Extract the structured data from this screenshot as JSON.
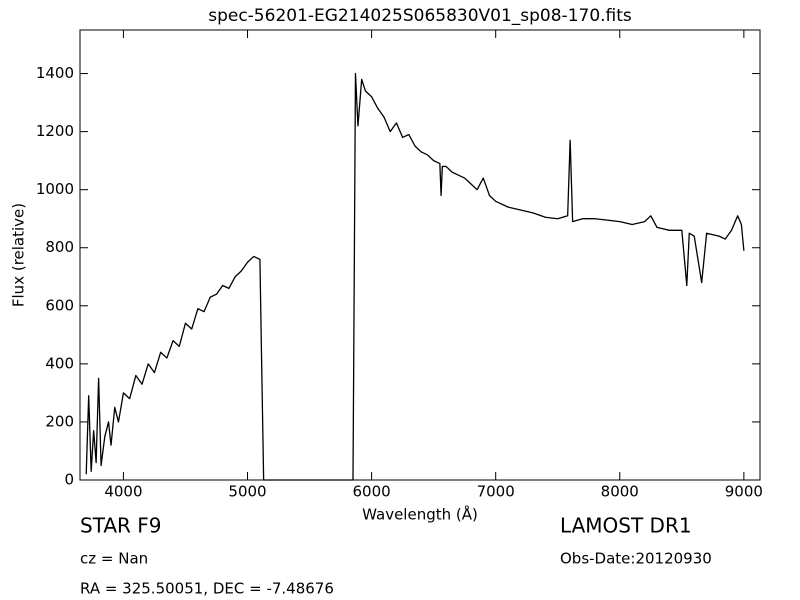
{
  "chart_data": {
    "type": "line",
    "title": "spec-56201-EG214025S065830V01_sp08-170.fits",
    "x_label": "Wavelength (Å)",
    "y_label": "Flux (relative)",
    "annotations": [
      "STAR   F9",
      "LAMOST DR1",
      "cz = Nan",
      "Obs-Date:20120930",
      "RA = 325.50051, DEC = -7.48676"
    ],
    "xlim": [
      3650,
      9130
    ],
    "ylim": [
      0,
      1550
    ],
    "xticks": [
      4000,
      5000,
      6000,
      7000,
      8000,
      9000
    ],
    "yticks": [
      0,
      200,
      400,
      600,
      800,
      1000,
      1200,
      1400
    ],
    "grid": false,
    "x": [
      3700,
      3720,
      3740,
      3760,
      3780,
      3800,
      3820,
      3850,
      3880,
      3900,
      3930,
      3960,
      4000,
      4050,
      4100,
      4150,
      4200,
      4250,
      4300,
      4350,
      4400,
      4450,
      4500,
      4550,
      4600,
      4650,
      4700,
      4750,
      4800,
      4850,
      4900,
      4950,
      5000,
      5050,
      5100,
      5110,
      5130,
      5500,
      5850,
      5870,
      5890,
      5920,
      5950,
      6000,
      6050,
      6100,
      6150,
      6200,
      6250,
      6300,
      6350,
      6400,
      6450,
      6500,
      6550,
      6560,
      6570,
      6600,
      6650,
      6700,
      6750,
      6800,
      6850,
      6900,
      6950,
      7000,
      7100,
      7200,
      7300,
      7400,
      7500,
      7580,
      7600,
      7620,
      7700,
      7800,
      7900,
      8000,
      8100,
      8200,
      8250,
      8300,
      8400,
      8500,
      8540,
      8560,
      8600,
      8660,
      8700,
      8800,
      8850,
      8900,
      8950,
      8980,
      9000
    ],
    "series": [
      {
        "color": "#000000",
        "values": [
          20,
          290,
          30,
          170,
          60,
          350,
          50,
          150,
          200,
          120,
          250,
          200,
          300,
          280,
          360,
          330,
          400,
          370,
          440,
          420,
          480,
          460,
          540,
          520,
          590,
          580,
          630,
          640,
          670,
          660,
          700,
          720,
          750,
          770,
          760,
          500,
          0,
          0,
          0,
          1400,
          1220,
          1380,
          1340,
          1320,
          1280,
          1250,
          1200,
          1230,
          1180,
          1190,
          1150,
          1130,
          1120,
          1100,
          1090,
          980,
          1080,
          1080,
          1060,
          1050,
          1040,
          1020,
          1000,
          1040,
          980,
          960,
          940,
          930,
          920,
          905,
          900,
          910,
          1170,
          890,
          900,
          900,
          895,
          890,
          880,
          890,
          910,
          870,
          860,
          860,
          670,
          850,
          840,
          680,
          850,
          840,
          830,
          860,
          910,
          880,
          790
        ]
      }
    ]
  }
}
